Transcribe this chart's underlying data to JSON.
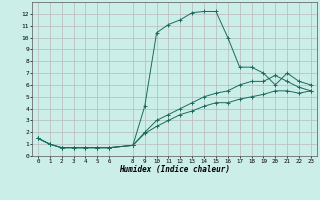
{
  "xlabel": "Humidex (Indice chaleur)",
  "bg_color": "#cceee8",
  "grid_color": "#b8b8b8",
  "line_color": "#1a6b5e",
  "xlim": [
    -0.5,
    23.5
  ],
  "ylim": [
    0,
    13
  ],
  "xticks": [
    0,
    1,
    2,
    3,
    4,
    5,
    6,
    8,
    9,
    10,
    11,
    12,
    13,
    14,
    15,
    16,
    17,
    18,
    19,
    20,
    21,
    22,
    23
  ],
  "yticks": [
    0,
    1,
    2,
    3,
    4,
    5,
    6,
    7,
    8,
    9,
    10,
    11,
    12
  ],
  "series": [
    {
      "x": [
        0,
        1,
        2,
        3,
        4,
        5,
        6,
        8,
        9,
        10,
        11,
        12,
        13,
        14,
        15,
        16,
        17,
        18,
        19,
        20,
        21,
        22,
        23
      ],
      "y": [
        1.5,
        1.0,
        0.7,
        0.7,
        0.7,
        0.7,
        0.7,
        0.9,
        4.2,
        10.4,
        11.1,
        11.5,
        12.1,
        12.2,
        12.2,
        10.0,
        7.5,
        7.5,
        7.0,
        6.0,
        7.0,
        6.3,
        6.0
      ]
    },
    {
      "x": [
        0,
        1,
        2,
        3,
        4,
        5,
        6,
        8,
        9,
        10,
        11,
        12,
        13,
        14,
        15,
        16,
        17,
        18,
        19,
        20,
        21,
        22,
        23
      ],
      "y": [
        1.5,
        1.0,
        0.7,
        0.7,
        0.7,
        0.7,
        0.7,
        0.9,
        2.0,
        3.0,
        3.5,
        4.0,
        4.5,
        5.0,
        5.3,
        5.5,
        6.0,
        6.3,
        6.3,
        6.8,
        6.3,
        5.8,
        5.5
      ]
    },
    {
      "x": [
        0,
        1,
        2,
        3,
        4,
        5,
        6,
        8,
        9,
        10,
        11,
        12,
        13,
        14,
        15,
        16,
        17,
        18,
        19,
        20,
        21,
        22,
        23
      ],
      "y": [
        1.5,
        1.0,
        0.7,
        0.7,
        0.7,
        0.7,
        0.7,
        0.9,
        1.9,
        2.5,
        3.0,
        3.5,
        3.8,
        4.2,
        4.5,
        4.5,
        4.8,
        5.0,
        5.2,
        5.5,
        5.5,
        5.3,
        5.5
      ]
    }
  ]
}
